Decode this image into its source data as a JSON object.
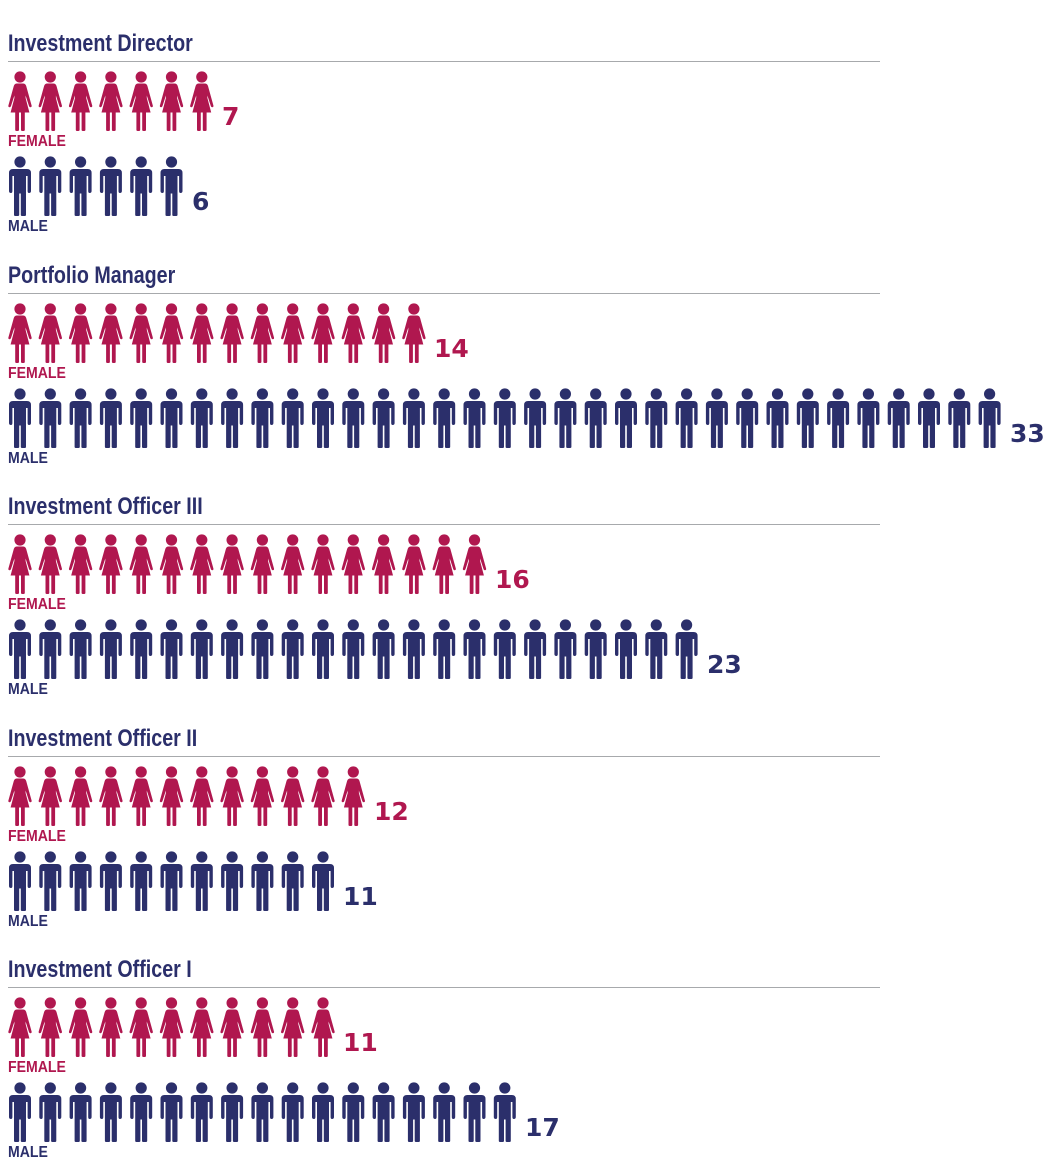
{
  "chart_data": {
    "type": "pictograph",
    "title": "",
    "unit": "1 icon = 1 person",
    "categories": [
      "Investment Director",
      "Portfolio Manager",
      "Investment Officer III",
      "Investment Officer II",
      "Investment Officer I"
    ],
    "series": [
      {
        "name": "FEMALE",
        "color": "#b0174f",
        "icon": "female-person-icon",
        "values": [
          7,
          14,
          16,
          12,
          11
        ]
      },
      {
        "name": "MALE",
        "color": "#2b2f6b",
        "icon": "male-person-icon",
        "values": [
          6,
          33,
          23,
          11,
          17
        ]
      }
    ]
  },
  "colors": {
    "female": "#b0174f",
    "male": "#2b2f6b",
    "title": "#2b2f6b",
    "divider": "#a7a9ac"
  }
}
